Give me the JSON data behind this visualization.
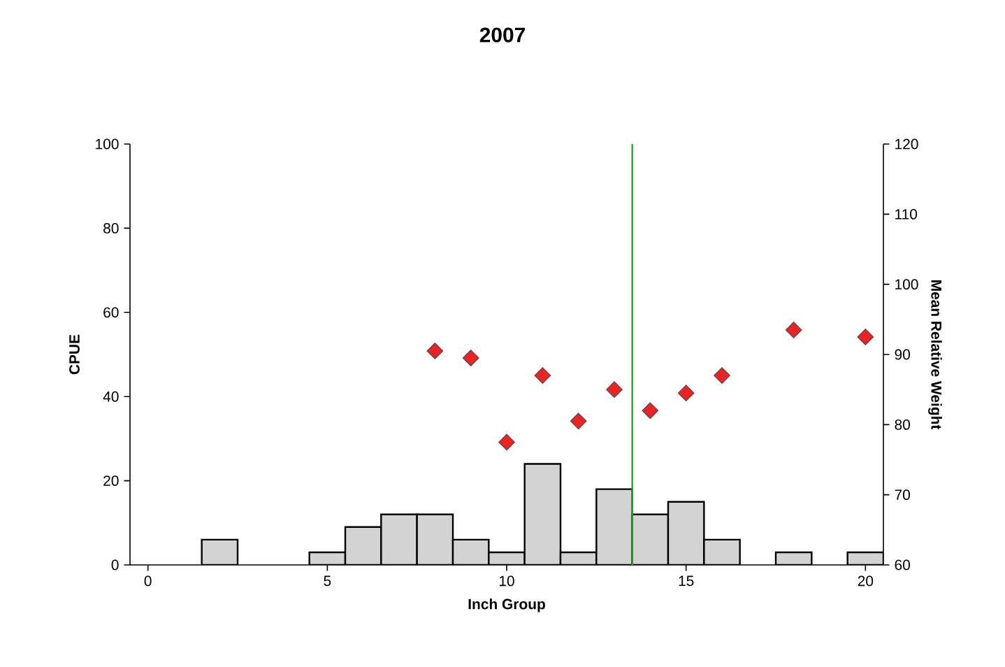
{
  "chart_data": {
    "type": "histogram",
    "title": "2007",
    "xlabel": "Inch Group",
    "ylabel": "CPUE",
    "y2label": "Mean Relative Weight",
    "bins": [
      -0.5,
      0.5,
      1.5,
      2.5,
      3.5,
      4.5,
      5.5,
      6.5,
      7.5,
      8.5,
      9.5,
      10.5,
      11.5,
      12.5,
      13.5,
      14.5,
      15.5,
      16.5,
      17.5,
      18.5,
      19.5,
      20.5
    ],
    "values": [
      0,
      0,
      6,
      0,
      0,
      3,
      9,
      12,
      12,
      6,
      3,
      24,
      3,
      18,
      12,
      15,
      6,
      0,
      3,
      0,
      3
    ],
    "color": "#d3d3d3",
    "series": [
      {
        "type": "scatter",
        "axis": "y2",
        "marker": "diamond",
        "color": "#ee2222",
        "x": [
          8,
          9,
          10,
          11,
          12,
          13,
          14,
          15,
          16,
          18,
          20
        ],
        "values": [
          90.5,
          89.5,
          77.5,
          87,
          80.5,
          85,
          82,
          84.5,
          87,
          93.5,
          92.5
        ]
      }
    ],
    "xlim": [
      -0.5,
      20.5
    ],
    "ylim": [
      0,
      100
    ],
    "y2lim": [
      60,
      120
    ],
    "xticks": [
      0,
      5,
      10,
      15,
      20
    ],
    "yticks": [
      0,
      20,
      40,
      60,
      80,
      100
    ],
    "y2ticks": [
      60,
      70,
      80,
      90,
      100,
      110,
      120
    ],
    "ref_lines": [
      {
        "axis": "x",
        "value": 13.5,
        "color": "#2ca02c"
      }
    ]
  }
}
